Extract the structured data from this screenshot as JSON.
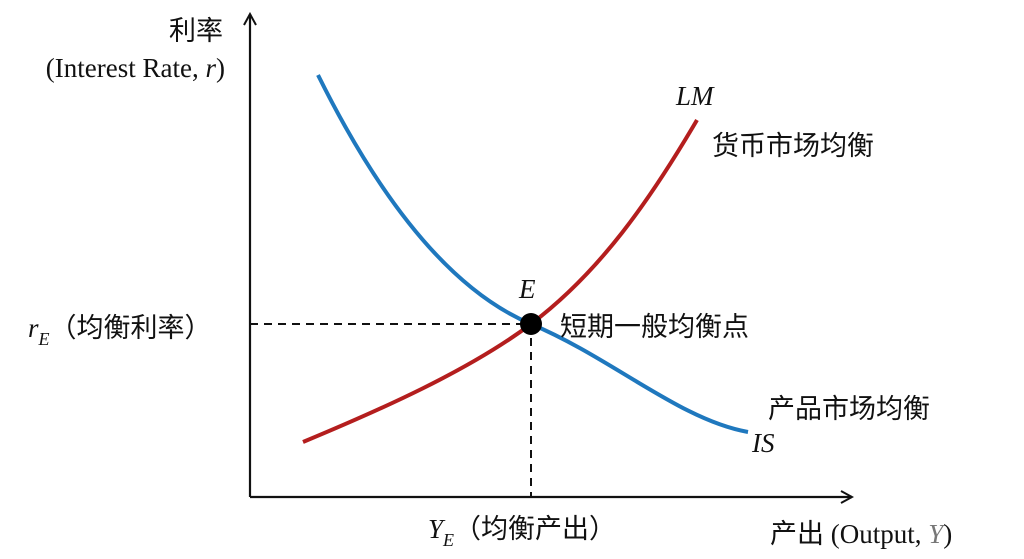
{
  "y_axis": {
    "label_cn": "利率",
    "label_en_prefix": "(Interest Rate, ",
    "label_en_var": "r",
    "label_en_suffix": ")"
  },
  "x_axis": {
    "label_cn": "产出",
    "label_en_prefix": " (Output, ",
    "label_en_var": "Y",
    "label_en_suffix": ")"
  },
  "curves": {
    "lm": {
      "name": "LM",
      "desc": "货币市场均衡",
      "color": "#b41e1e"
    },
    "is": {
      "name": "IS",
      "desc": "产品市场均衡",
      "color": "#1f78be"
    }
  },
  "equilibrium": {
    "point": "E",
    "desc": "短期一般均衡点"
  },
  "r_e": {
    "var": "r",
    "sub": "E",
    "desc": "（均衡利率）"
  },
  "y_e": {
    "var": "Y",
    "sub": "E",
    "desc": "（均衡产出）"
  }
}
